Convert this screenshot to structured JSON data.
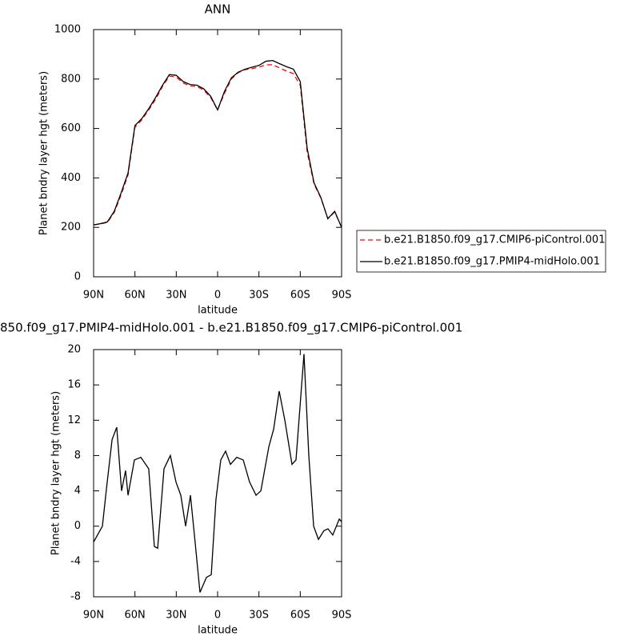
{
  "chart_data": [
    {
      "type": "line",
      "title": "ANN",
      "xlabel": "latitude",
      "ylabel": "Planet bndry layer hgt (meters)",
      "x": [
        90,
        85,
        80,
        75,
        70,
        65,
        60,
        55,
        50,
        45,
        40,
        35,
        30,
        25,
        20,
        15,
        10,
        5,
        0,
        -5,
        -10,
        -15,
        -20,
        -25,
        -30,
        -35,
        -40,
        -45,
        -50,
        -55,
        -60,
        -65,
        -70,
        -75,
        -80,
        -85,
        -90
      ],
      "series": [
        {
          "name": "b.e21.B1850.f09_g17.CMIP6-piControl.001",
          "color": "#ff0000",
          "linestyle": "dashed",
          "values": [
            210,
            214,
            220,
            260,
            332,
            412,
            605,
            635,
            675,
            718,
            770,
            812,
            808,
            784,
            772,
            770,
            755,
            725,
            675,
            742,
            800,
            826,
            838,
            842,
            848,
            857,
            858,
            845,
            832,
            822,
            775,
            505,
            375,
            318,
            235,
            262,
            200
          ]
        },
        {
          "name": "b.e21.B1850.f09_g17.PMIP4-midHolo.001",
          "color": "#000000",
          "linestyle": "solid",
          "values": [
            210,
            215,
            222,
            265,
            340,
            420,
            612,
            640,
            680,
            725,
            775,
            818,
            815,
            790,
            778,
            775,
            760,
            730,
            675,
            750,
            805,
            828,
            840,
            848,
            855,
            872,
            875,
            862,
            850,
            840,
            790,
            520,
            380,
            320,
            235,
            265,
            200
          ]
        }
      ],
      "xlim": [
        90,
        -90
      ],
      "xticks": [
        {
          "value": 90,
          "label": "90N"
        },
        {
          "value": 60,
          "label": "60N"
        },
        {
          "value": 30,
          "label": "30N"
        },
        0,
        {
          "value": -30,
          "label": "30S"
        },
        {
          "value": -60,
          "label": "60S"
        },
        {
          "value": -90,
          "label": "90S"
        }
      ],
      "ylim": [
        0,
        1000
      ],
      "yticks": [
        0,
        200,
        400,
        600,
        800,
        1000
      ],
      "legend": "right"
    },
    {
      "type": "line",
      "title": "850.f09_g17.PMIP4-midHolo.001 - b.e21.B1850.f09_g17.CMIP6-piControl.001",
      "xlabel": "latitude",
      "ylabel": "Planet bndry layer hgt (meters)",
      "x": [
        90,
        83.6,
        80.7,
        76.6,
        73.2,
        69.7,
        66.8,
        65,
        60.4,
        55.7,
        50,
        45.9,
        43.5,
        38.9,
        34.3,
        30.2,
        26.7,
        23.2,
        19.7,
        16.2,
        12.8,
        8.1,
        4.6,
        1.2,
        -2.3,
        -5.8,
        -9.3,
        -13.9,
        -18.6,
        -23.2,
        -27.9,
        -31.4,
        -37.2,
        -40.7,
        -44.7,
        -48.8,
        -54,
        -56.9,
        -62.7,
        -66.2,
        -69.7,
        -73.2,
        -77.2,
        -80.1,
        -83.6,
        -88.3,
        -90
      ],
      "series": [
        {
          "color": "#000000",
          "linestyle": "solid",
          "values": [
            -1.8,
            0,
            4.2,
            9.8,
            11.2,
            4,
            6.3,
            3.5,
            7.5,
            7.8,
            6.5,
            -2.3,
            -2.5,
            6.5,
            8,
            5,
            3.5,
            0,
            3.5,
            -2,
            -7.5,
            -5.8,
            -5.5,
            3,
            7.5,
            8.5,
            7,
            7.8,
            7.5,
            5,
            3.5,
            4,
            9,
            11,
            15.3,
            12,
            7,
            7.5,
            19.5,
            8,
            0,
            -1.5,
            -0.5,
            -0.3,
            -1,
            0.8,
            0.5
          ]
        }
      ],
      "xlim": [
        90,
        -90
      ],
      "xticks": [
        {
          "value": 90,
          "label": "90N"
        },
        {
          "value": 60,
          "label": "60N"
        },
        {
          "value": 30,
          "label": "30N"
        },
        0,
        {
          "value": -30,
          "label": "30S"
        },
        {
          "value": -60,
          "label": "60S"
        },
        {
          "value": -90,
          "label": "90S"
        }
      ],
      "ylim": [
        -8,
        20
      ],
      "yticks": [
        -8,
        -4,
        0,
        4,
        8,
        12,
        16,
        20
      ]
    }
  ]
}
